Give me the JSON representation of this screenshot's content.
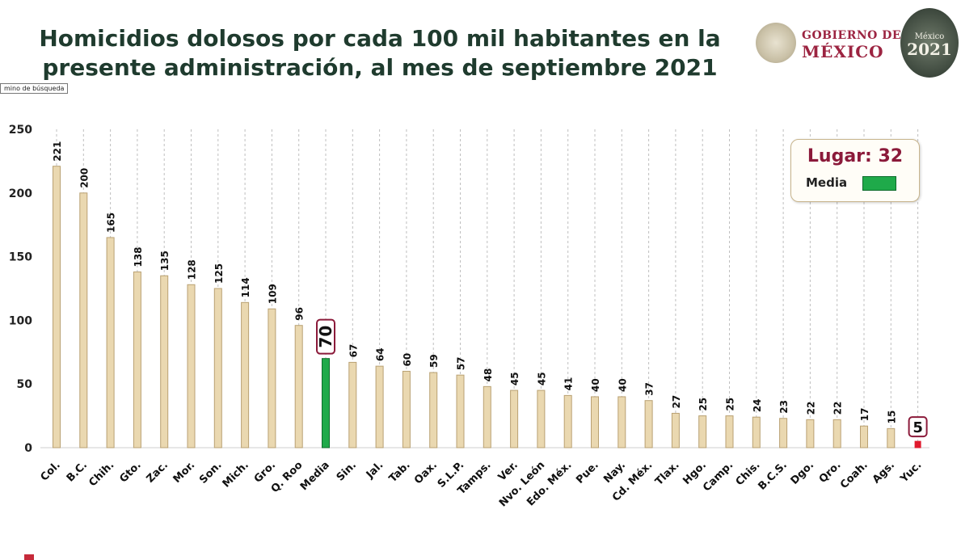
{
  "header": {
    "title": "Homicidios dolosos por cada 100 mil habitantes en la presente administración, al mes de septiembre 2021",
    "tooltip": "mino de búsqueda",
    "gob_line1": "GOBIERNO DE",
    "gob_line2": "MÉXICO",
    "badge_line1": "México",
    "badge_line2": "2021"
  },
  "legend": {
    "rank": "Lugar: 32",
    "media_label": "Media"
  },
  "colors": {
    "bar": "#ead8b0",
    "bar_stroke": "#b9a173",
    "media": "#1faa4a",
    "highlight": "#e0192d",
    "highlight_border": "#8b1a3a"
  },
  "chart_data": {
    "type": "bar",
    "categories": [
      "Col.",
      "B.C.",
      "Chih.",
      "Gto.",
      "Zac.",
      "Mor.",
      "Son.",
      "Mich.",
      "Gro.",
      "Q. Roo",
      "Media",
      "Sin.",
      "Jal.",
      "Tab.",
      "Oax.",
      "S.L.P.",
      "Tamps.",
      "Ver.",
      "Nvo. León",
      "Edo. Méx.",
      "Pue.",
      "Nay.",
      "Cd. Méx.",
      "Tlax.",
      "Hgo.",
      "Camp.",
      "Chis.",
      "B.C.S.",
      "Dgo.",
      "Qro.",
      "Coah.",
      "Ags.",
      "Yuc."
    ],
    "values": [
      221,
      200,
      165,
      138,
      135,
      128,
      125,
      114,
      109,
      96,
      70,
      67,
      64,
      60,
      59,
      57,
      48,
      45,
      45,
      41,
      40,
      40,
      37,
      27,
      25,
      25,
      24,
      23,
      22,
      22,
      17,
      15,
      5
    ],
    "ylim": [
      0,
      250
    ],
    "yticks": [
      0,
      50,
      100,
      150,
      200,
      250
    ],
    "grid": "vertical dashed",
    "media_category": "Media",
    "highlight_category": "Yuc."
  }
}
